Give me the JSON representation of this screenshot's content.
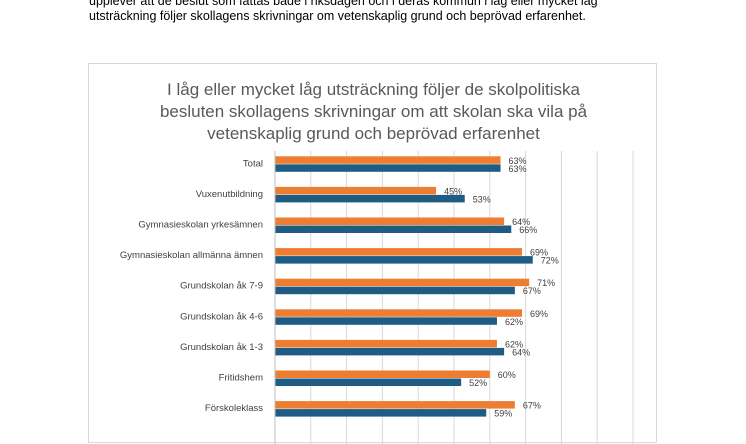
{
  "document": {
    "lines": [
      "upplever att de beslut som fattas både i riksdagen och i deras kommun i låg eller mycket låg",
      "utsträckning följer skollagens skrivningar om vetenskaplig grund och beprövad erfarenhet."
    ]
  },
  "chart_data": {
    "type": "bar",
    "orientation": "horizontal",
    "title_lines": [
      "I låg eller mycket låg utsträckning följer de skolpolitiska",
      "besluten skollagens skrivningar om att skolan ska vila på",
      "vetenskaplig grund och beprövad erfarenhet"
    ],
    "categories": [
      "Total",
      "Vuxenutbildning",
      "Gymnasieskolan yrkesämnen",
      "Gymnasieskolan allmänna ämnen",
      "Grundskolan åk 7-9",
      "Grundskolan åk 4-6",
      "Grundskolan åk 1-3",
      "Fritidshem",
      "Förskoleklass"
    ],
    "series": [
      {
        "color": "#ed7d31",
        "values": [
          63,
          45,
          64,
          69,
          71,
          69,
          62,
          60,
          67
        ],
        "labels": [
          "63%",
          "45%",
          "64%",
          "69%",
          "71%",
          "69%",
          "62%",
          "60%",
          "67%"
        ]
      },
      {
        "color": "#1f5c84",
        "values": [
          63,
          53,
          66,
          72,
          67,
          62,
          64,
          52,
          59
        ],
        "labels": [
          "63%",
          "53%",
          "66%",
          "72%",
          "67%",
          "62%",
          "64%",
          "52%",
          "59%"
        ]
      }
    ],
    "xlim": [
      0,
      100
    ],
    "grid": true
  }
}
